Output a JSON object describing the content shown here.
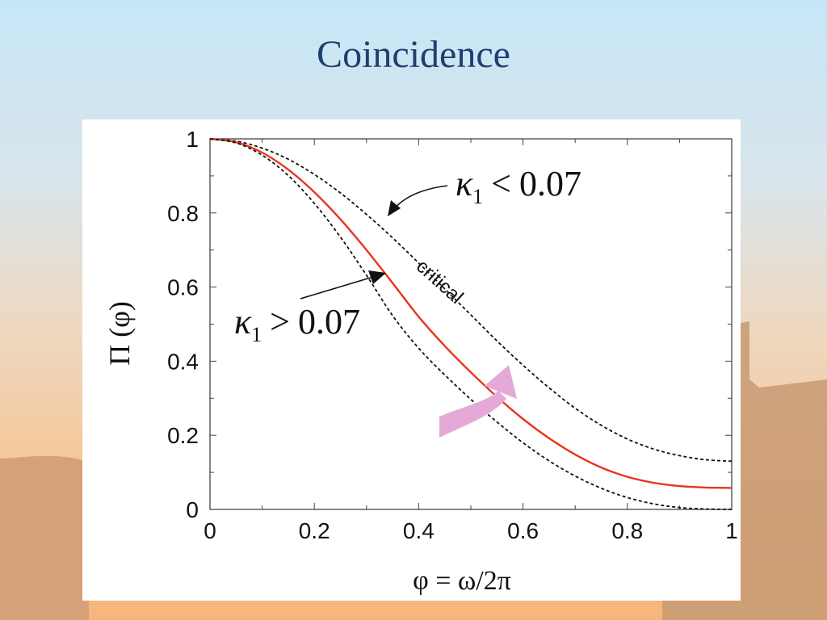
{
  "slide": {
    "title": "Coincidence"
  },
  "colors": {
    "title": "#1f3f6e",
    "critical_curve": "#e8341c",
    "bound_curves": "#111111",
    "arrow_highlight": "#e4a9d6"
  },
  "chart_data": {
    "type": "line",
    "xlabel": "φ = ω/2π",
    "ylabel": "Π (φ)",
    "xlim": [
      0,
      1
    ],
    "ylim": [
      0,
      1
    ],
    "x_ticks": [
      "0",
      "0.2",
      "0.4",
      "0.6",
      "0.8",
      "1"
    ],
    "y_ticks": [
      "0",
      "0.2",
      "0.4",
      "0.6",
      "0.8",
      "1"
    ],
    "grid": false,
    "series": [
      {
        "name": "κ₁ < 0.07",
        "style": "dashed",
        "color": "#111111",
        "x": [
          0,
          0.05,
          0.1,
          0.15,
          0.2,
          0.25,
          0.3,
          0.35,
          0.4,
          0.45,
          0.5,
          0.55,
          0.6,
          0.65,
          0.7,
          0.75,
          0.8,
          0.85,
          0.9,
          0.95,
          1.0
        ],
        "y": [
          1.0,
          0.994,
          0.975,
          0.945,
          0.904,
          0.854,
          0.796,
          0.733,
          0.665,
          0.595,
          0.525,
          0.455,
          0.389,
          0.328,
          0.273,
          0.227,
          0.19,
          0.163,
          0.145,
          0.134,
          0.13
        ]
      },
      {
        "name": "critical",
        "style": "solid",
        "color": "#e8341c",
        "x": [
          0,
          0.05,
          0.1,
          0.15,
          0.2,
          0.25,
          0.3,
          0.35,
          0.4,
          0.45,
          0.5,
          0.55,
          0.6,
          0.65,
          0.7,
          0.75,
          0.8,
          0.85,
          0.9,
          0.95,
          1.0
        ],
        "y": [
          1.0,
          0.991,
          0.963,
          0.917,
          0.856,
          0.783,
          0.7,
          0.611,
          0.52,
          0.441,
          0.37,
          0.304,
          0.244,
          0.192,
          0.148,
          0.113,
          0.088,
          0.072,
          0.063,
          0.059,
          0.058
        ]
      },
      {
        "name": "κ₁ > 0.07",
        "style": "dashed",
        "color": "#111111",
        "x": [
          0,
          0.05,
          0.1,
          0.15,
          0.2,
          0.25,
          0.3,
          0.35,
          0.4,
          0.45,
          0.5,
          0.55,
          0.6,
          0.65,
          0.7,
          0.75,
          0.8,
          0.85,
          0.9,
          0.95,
          1.0
        ],
        "y": [
          1.0,
          0.989,
          0.956,
          0.901,
          0.826,
          0.735,
          0.632,
          0.523,
          0.435,
          0.363,
          0.297,
          0.236,
          0.18,
          0.131,
          0.09,
          0.057,
          0.032,
          0.015,
          0.005,
          0.001,
          0.0
        ]
      }
    ],
    "annotations": {
      "kappa_less": {
        "symbol": "κ",
        "sub": "1",
        "rel": "<",
        "value": "0.07"
      },
      "kappa_greater": {
        "symbol": "κ",
        "sub": "1",
        "rel": ">",
        "value": "0.07"
      },
      "critical": "critical"
    }
  }
}
